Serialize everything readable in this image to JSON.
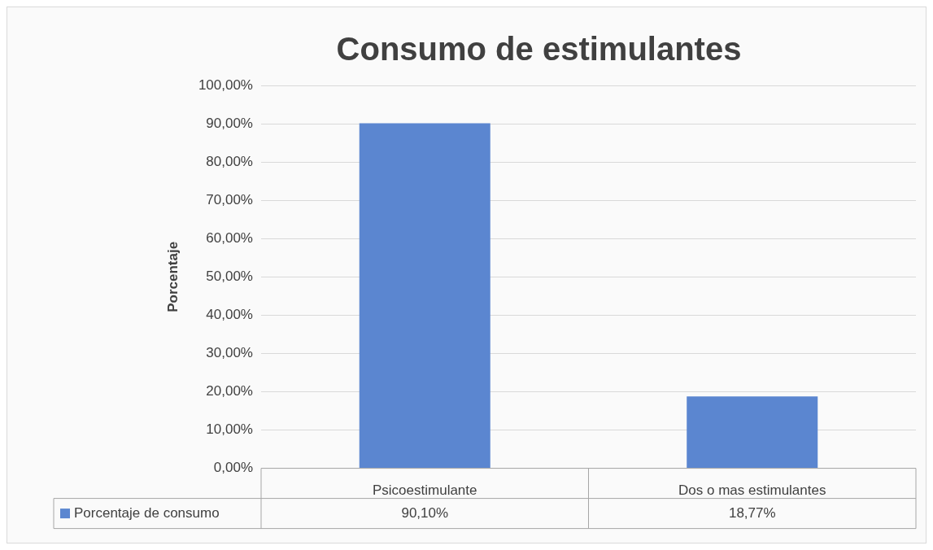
{
  "chart_data": {
    "type": "bar",
    "title": "Consumo de estimulantes",
    "ylabel": "Porcentaje",
    "categories": [
      "Psicoestimulante",
      "Dos o mas estimulantes"
    ],
    "series": [
      {
        "name": "Porcentaje de consumo",
        "color": "#5b86d0",
        "values": [
          90.1,
          18.77
        ],
        "value_labels": [
          "90,10%",
          "18,77%"
        ]
      }
    ],
    "ylim": [
      0,
      100
    ],
    "yticks": [
      {
        "value": 0,
        "label": "0,00%"
      },
      {
        "value": 10,
        "label": "10,00%"
      },
      {
        "value": 20,
        "label": "20,00%"
      },
      {
        "value": 30,
        "label": "30,00%"
      },
      {
        "value": 40,
        "label": "40,00%"
      },
      {
        "value": 50,
        "label": "50,00%"
      },
      {
        "value": 60,
        "label": "60,00%"
      },
      {
        "value": 70,
        "label": "70,00%"
      },
      {
        "value": 80,
        "label": "80,00%"
      },
      {
        "value": 90,
        "label": "90,00%"
      },
      {
        "value": 100,
        "label": "100,00%"
      }
    ],
    "grid": "y",
    "legend": "bottom"
  }
}
